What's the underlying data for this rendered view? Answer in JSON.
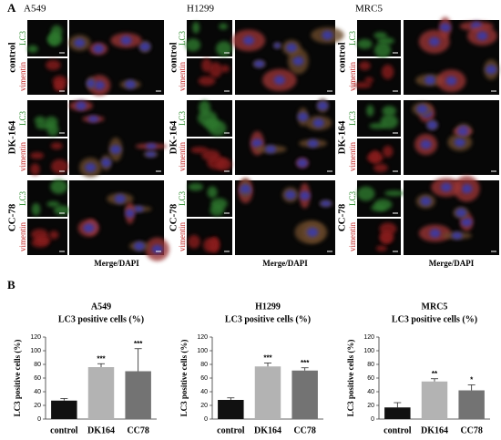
{
  "panel_a": {
    "label": "A",
    "conditions": [
      "control",
      "DK-164",
      "CC-78"
    ],
    "stains": [
      "LC3",
      "vimentin"
    ],
    "merge_label": "Merge/DAPI",
    "cell_lines": [
      "A549",
      "H1299",
      "MRC5"
    ]
  },
  "panel_b": {
    "label": "B"
  },
  "chart_data": [
    {
      "type": "bar",
      "title": "A549",
      "subtitle": "LC3 positive cells (%)",
      "ylabel": "LC3 positive cells (%)",
      "categories": [
        "control",
        "DK164",
        "CC78"
      ],
      "values": [
        27,
        76,
        70
      ],
      "errors": [
        3,
        5,
        33
      ],
      "annotations": [
        null,
        "***",
        "***"
      ],
      "colors": [
        "#111111",
        "#b3b3b3",
        "#737373"
      ],
      "ylim": [
        0,
        120
      ],
      "yticks": [
        0,
        20,
        40,
        60,
        80,
        100,
        120
      ]
    },
    {
      "type": "bar",
      "title": "H1299",
      "subtitle": "LC3 positive cells (%)",
      "ylabel": "LC3 positive cells (%)",
      "categories": [
        "control",
        "DK164",
        "CC78"
      ],
      "values": [
        28,
        77,
        71
      ],
      "errors": [
        3,
        5,
        4
      ],
      "annotations": [
        null,
        "***",
        "***"
      ],
      "colors": [
        "#111111",
        "#b3b3b3",
        "#737373"
      ],
      "ylim": [
        0,
        120
      ],
      "yticks": [
        0,
        20,
        40,
        60,
        80,
        100,
        120
      ]
    },
    {
      "type": "bar",
      "title": "MRC5",
      "subtitle": "LC3 positive cells (%)",
      "ylabel": "LC3 positive cells (%)",
      "categories": [
        "control",
        "DK164",
        "CC78"
      ],
      "values": [
        17,
        55,
        42
      ],
      "errors": [
        7,
        4,
        8
      ],
      "annotations": [
        null,
        "**",
        "*"
      ],
      "colors": [
        "#111111",
        "#b3b3b3",
        "#737373"
      ],
      "ylim": [
        0,
        120
      ],
      "yticks": [
        0,
        20,
        40,
        60,
        80,
        100,
        120
      ]
    }
  ]
}
